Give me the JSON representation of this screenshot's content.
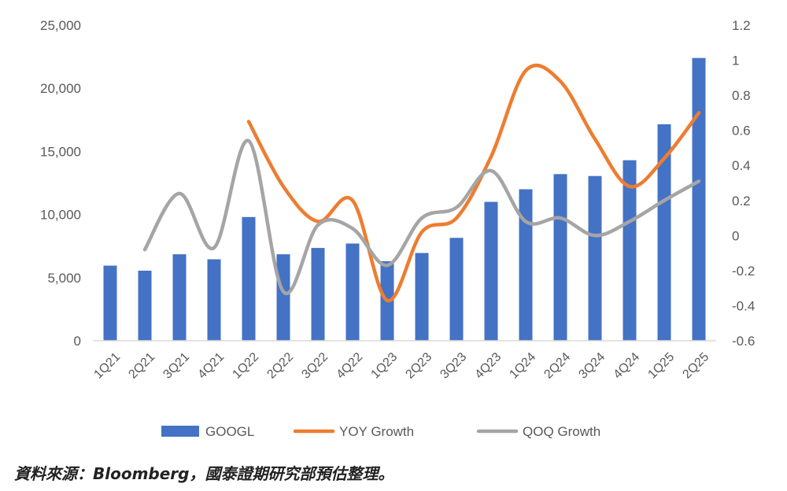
{
  "chart_data": {
    "type": "bar",
    "categories": [
      "1Q21",
      "2Q21",
      "3Q21",
      "4Q21",
      "1Q22",
      "2Q22",
      "3Q22",
      "4Q22",
      "1Q23",
      "2Q23",
      "3Q23",
      "4Q23",
      "1Q24",
      "2Q24",
      "3Q24",
      "4Q24",
      "1Q25",
      "2Q25"
    ],
    "series": [
      {
        "name": "GOOGL",
        "type": "bar",
        "axis": "left",
        "color": "#4472C4",
        "values": [
          5950,
          5550,
          6850,
          6450,
          9800,
          6850,
          7350,
          7700,
          6300,
          6950,
          8150,
          11000,
          12000,
          13200,
          13050,
          14300,
          17150,
          22400
        ]
      },
      {
        "name": "YOY Growth",
        "type": "line",
        "axis": "right",
        "color": "#ED7D31",
        "values": [
          null,
          null,
          null,
          null,
          0.65,
          0.28,
          0.08,
          0.2,
          -0.37,
          0.02,
          0.1,
          0.45,
          0.94,
          0.88,
          0.55,
          0.28,
          0.44,
          0.7
        ]
      },
      {
        "name": "QOQ Growth",
        "type": "line",
        "axis": "right",
        "color": "#A5A5A5",
        "values": [
          null,
          -0.08,
          0.24,
          -0.07,
          0.54,
          -0.32,
          0.06,
          0.04,
          -0.17,
          0.1,
          0.16,
          0.37,
          0.08,
          0.1,
          0.0,
          0.08,
          0.2,
          0.31
        ]
      }
    ],
    "y_left": {
      "min": 0,
      "max": 25000,
      "ticks": [
        "0",
        "5,000",
        "10,000",
        "15,000",
        "20,000",
        "25,000"
      ],
      "tick_values": [
        0,
        5000,
        10000,
        15000,
        20000,
        25000
      ]
    },
    "y_right": {
      "min": -0.6,
      "max": 1.2,
      "ticks": [
        "-0.6",
        "-0.4",
        "-0.2",
        "0",
        "0.2",
        "0.4",
        "0.6",
        "0.8",
        "1",
        "1.2"
      ],
      "tick_values": [
        -0.6,
        -0.4,
        -0.2,
        0,
        0.2,
        0.4,
        0.6,
        0.8,
        1,
        1.2
      ]
    },
    "grid": false,
    "legend": {
      "position": "bottom",
      "entries": [
        "GOOGL",
        "YOY Growth",
        "QOQ Growth"
      ]
    }
  },
  "source_note": "資料來源：Bloomberg，國泰證期研究部預估整理。"
}
